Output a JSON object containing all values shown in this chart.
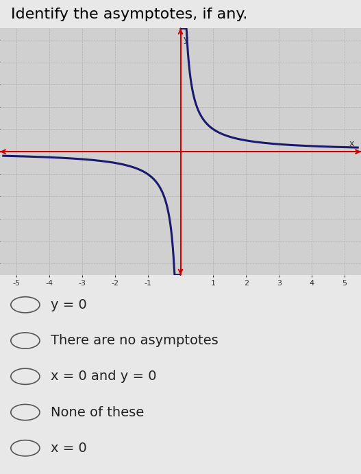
{
  "title": "Identify the asymptotes, if any.",
  "title_fontsize": 16,
  "title_color": "#000000",
  "background_color": "#e8e8e8",
  "graph_background": "#d0d0d0",
  "xlim": [
    -5.5,
    5.5
  ],
  "ylim": [
    -5.5,
    5.5
  ],
  "xticks": [
    -5,
    -4,
    -3,
    -2,
    -1,
    1,
    2,
    3,
    4,
    5
  ],
  "yticks": [
    -5,
    -4,
    -3,
    -2,
    -1,
    1,
    2,
    3,
    4,
    5
  ],
  "curve_color": "#1a1a6e",
  "axis_color": "#cc0000",
  "grid_color": "#b0b0b0",
  "asymptote_x_color": "#cc0000",
  "choices": [
    "y = 0",
    "There are no asymptotes",
    "x = 0 and y = 0",
    "None of these",
    "x = 0"
  ],
  "choice_fontsize": 14
}
